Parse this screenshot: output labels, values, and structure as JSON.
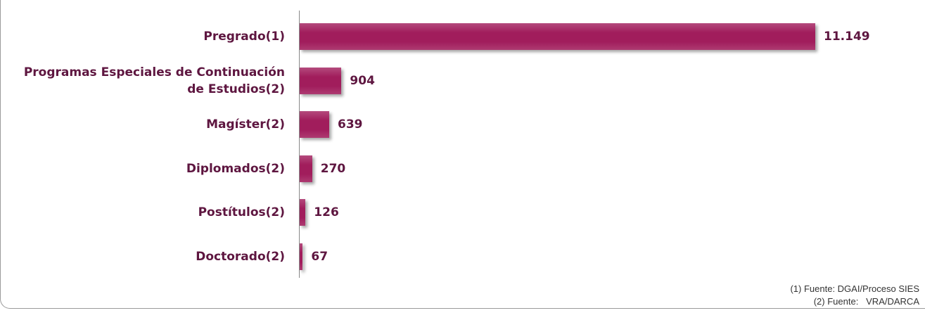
{
  "chart_data": {
    "type": "hbar",
    "categories": [
      "Pregrado(1)",
      "Programas Especiales de Continuación de Estudios(2)",
      "Magíster(2)",
      "Diplomados(2)",
      "Postítulos(2)",
      "Doctorado(2)"
    ],
    "values": [
      11149,
      904,
      639,
      270,
      126,
      67
    ],
    "value_labels": [
      "11.149",
      "904",
      "639",
      "270",
      "126",
      "67"
    ],
    "color": "#a11d5c",
    "footnotes": [
      "(1) Fuente: DGAI/Proceso SIES",
      "(2) Fuente:   VRA/DARCA"
    ]
  }
}
